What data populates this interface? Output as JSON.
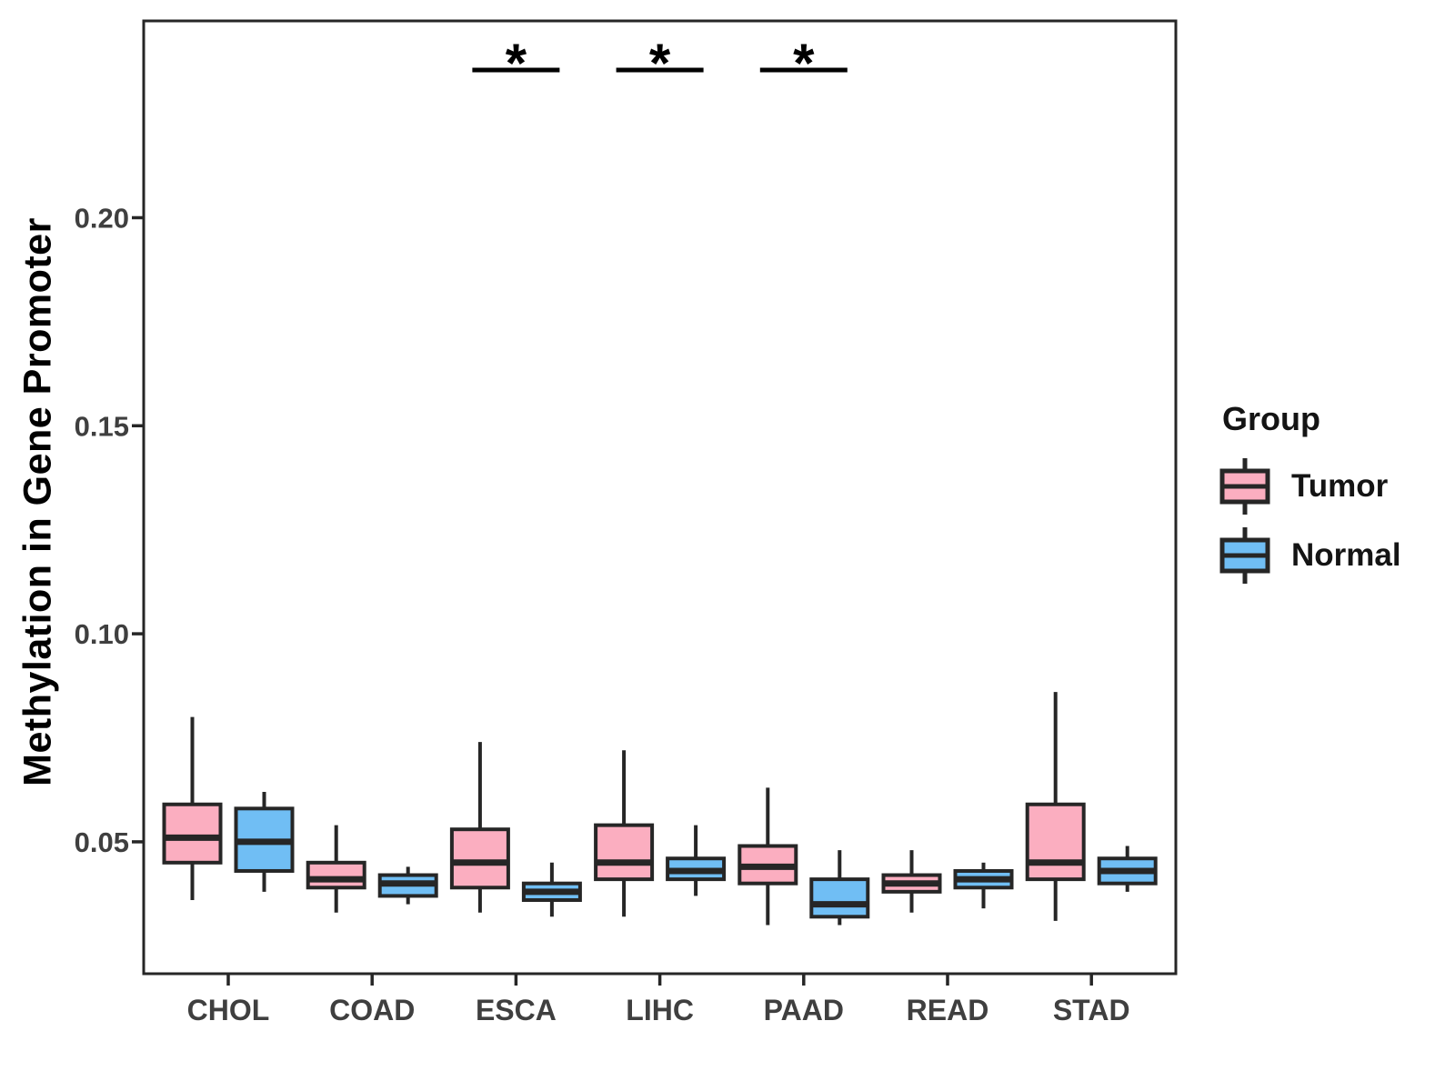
{
  "chart_data": {
    "type": "boxplot",
    "title": "",
    "xlabel": "",
    "ylabel": "Methylation in Gene Promoter",
    "categories": [
      "CHOL",
      "COAD",
      "ESCA",
      "LIHC",
      "PAAD",
      "READ",
      "STAD"
    ],
    "yticks": [
      0.05,
      0.1,
      0.15,
      0.2
    ],
    "ytick_labels": [
      "0.05",
      "0.10",
      "0.15",
      "0.20"
    ],
    "ylim": [
      0.0183,
      0.2473
    ],
    "grid": false,
    "legend": {
      "title": "Group",
      "position": "right"
    },
    "series": [
      {
        "name": "Tumor",
        "fill": "#FBAEC0",
        "boxes": [
          {
            "category": "CHOL",
            "low": 0.036,
            "q1": 0.045,
            "median": 0.051,
            "q3": 0.059,
            "high": 0.08
          },
          {
            "category": "COAD",
            "low": 0.033,
            "q1": 0.039,
            "median": 0.041,
            "q3": 0.045,
            "high": 0.054
          },
          {
            "category": "ESCA",
            "low": 0.033,
            "q1": 0.039,
            "median": 0.045,
            "q3": 0.053,
            "high": 0.074
          },
          {
            "category": "LIHC",
            "low": 0.032,
            "q1": 0.041,
            "median": 0.045,
            "q3": 0.054,
            "high": 0.072
          },
          {
            "category": "PAAD",
            "low": 0.03,
            "q1": 0.04,
            "median": 0.044,
            "q3": 0.049,
            "high": 0.063
          },
          {
            "category": "READ",
            "low": 0.033,
            "q1": 0.038,
            "median": 0.04,
            "q3": 0.042,
            "high": 0.048
          },
          {
            "category": "STAD",
            "low": 0.031,
            "q1": 0.041,
            "median": 0.045,
            "q3": 0.059,
            "high": 0.086
          }
        ]
      },
      {
        "name": "Normal",
        "fill": "#70BEF4",
        "boxes": [
          {
            "category": "CHOL",
            "low": 0.038,
            "q1": 0.043,
            "median": 0.05,
            "q3": 0.058,
            "high": 0.062
          },
          {
            "category": "COAD",
            "low": 0.035,
            "q1": 0.037,
            "median": 0.04,
            "q3": 0.042,
            "high": 0.044
          },
          {
            "category": "ESCA",
            "low": 0.032,
            "q1": 0.036,
            "median": 0.038,
            "q3": 0.04,
            "high": 0.045
          },
          {
            "category": "LIHC",
            "low": 0.037,
            "q1": 0.041,
            "median": 0.043,
            "q3": 0.046,
            "high": 0.054
          },
          {
            "category": "PAAD",
            "low": 0.03,
            "q1": 0.032,
            "median": 0.035,
            "q3": 0.041,
            "high": 0.048
          },
          {
            "category": "READ",
            "low": 0.034,
            "q1": 0.039,
            "median": 0.041,
            "q3": 0.043,
            "high": 0.045
          },
          {
            "category": "STAD",
            "low": 0.038,
            "q1": 0.04,
            "median": 0.043,
            "q3": 0.046,
            "high": 0.049
          }
        ]
      }
    ],
    "significance_markers": [
      {
        "category": "ESCA",
        "label": "*"
      },
      {
        "category": "LIHC",
        "label": "*"
      },
      {
        "category": "PAAD",
        "label": "*"
      }
    ],
    "colors": {
      "box_stroke": "#262626",
      "panel_border": "#262626",
      "tick_text": "#3F3F3F",
      "axis_text": "#000000",
      "significance": "#000000"
    }
  }
}
